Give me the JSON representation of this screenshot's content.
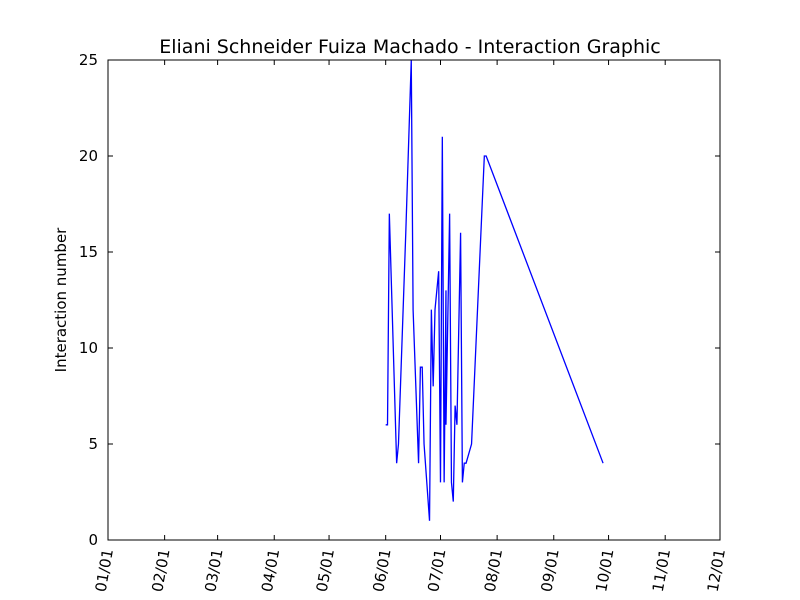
{
  "chart_data": {
    "type": "line",
    "title": "Eliani Schneider Fuiza Machado - Interaction Graphic",
    "xlabel": "",
    "ylabel": "Interaction number",
    "xlim": [
      "01/01",
      "12/01"
    ],
    "ylim": [
      0,
      25
    ],
    "x_ticks": [
      "01/01",
      "02/01",
      "03/01",
      "04/01",
      "05/01",
      "06/01",
      "07/01",
      "08/01",
      "09/01",
      "10/01",
      "11/01",
      "12/01"
    ],
    "y_ticks": [
      "0",
      "5",
      "10",
      "15",
      "20",
      "25"
    ],
    "grid": false,
    "line_color": "#0000ff",
    "series": [
      {
        "x": [
          "06/01",
          "06/02",
          "06/03",
          "06/07",
          "06/08",
          "06/12",
          "06/15",
          "06/16",
          "06/19",
          "06/20",
          "06/21",
          "06/22",
          "06/25",
          "06/26",
          "06/27",
          "06/28",
          "06/30",
          "07/01",
          "07/02",
          "07/03",
          "07/04",
          "07/04",
          "07/06",
          "07/07",
          "07/08",
          "07/09",
          "07/10",
          "07/12",
          "07/13",
          "07/14",
          "07/15",
          "07/18",
          "07/25",
          "07/26",
          "09/28"
        ],
        "y": [
          6,
          6,
          17,
          4,
          5,
          16,
          25,
          12,
          4,
          9,
          9,
          5,
          1,
          12,
          8,
          12,
          14,
          3,
          21,
          3,
          13,
          6,
          17,
          3,
          2,
          7,
          6,
          16,
          3,
          4,
          4,
          5,
          20,
          20,
          4
        ]
      }
    ]
  }
}
